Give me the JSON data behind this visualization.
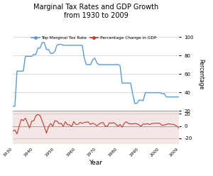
{
  "title": "Marginal Tax Rates and GDP Growth\nfrom 1930 to 2009",
  "xlabel": "Year",
  "right_ylabel": "Percentage",
  "tax_color": "#5b9bd5",
  "gdp_color": "#c0392b",
  "background_top": "#ffffff",
  "background_bottom": "#f5e6e6",
  "legend_tax": "Top Marginal Tax Rate",
  "legend_gdp": "Percentage Change in GDP",
  "tax_years": [
    1930,
    1931,
    1932,
    1933,
    1934,
    1935,
    1936,
    1937,
    1938,
    1939,
    1940,
    1941,
    1942,
    1943,
    1944,
    1945,
    1946,
    1947,
    1948,
    1949,
    1950,
    1951,
    1952,
    1953,
    1954,
    1955,
    1956,
    1957,
    1958,
    1959,
    1960,
    1961,
    1962,
    1963,
    1964,
    1965,
    1966,
    1967,
    1968,
    1969,
    1970,
    1971,
    1972,
    1973,
    1974,
    1975,
    1976,
    1977,
    1978,
    1979,
    1980,
    1981,
    1982,
    1983,
    1984,
    1985,
    1986,
    1987,
    1988,
    1989,
    1990,
    1991,
    1992,
    1993,
    1994,
    1995,
    1996,
    1997,
    1998,
    1999,
    2000,
    2001,
    2002,
    2003,
    2004,
    2005,
    2006,
    2007,
    2008,
    2009
  ],
  "tax_rates": [
    25,
    25,
    63,
    63,
    63,
    63,
    79,
    79,
    79,
    79,
    81.1,
    81.1,
    88,
    88,
    94,
    94,
    86.45,
    86.45,
    82.13,
    82.13,
    84.36,
    91,
    92,
    92,
    91,
    91,
    91,
    91,
    91,
    91,
    91,
    91,
    91,
    91,
    77,
    70,
    70,
    70,
    75.25,
    77,
    71.75,
    70,
    70,
    70,
    70,
    70,
    70,
    70,
    70,
    70,
    70,
    69.125,
    50,
    50,
    50,
    50,
    50,
    38.5,
    28,
    28,
    31.5,
    31.5,
    31,
    39.6,
    39.6,
    39.6,
    39.6,
    39.6,
    39.6,
    39.6,
    39.6,
    38.6,
    38.6,
    35,
    35,
    35,
    35,
    35,
    35,
    35
  ],
  "gdp_years": [
    1930,
    1931,
    1932,
    1933,
    1934,
    1935,
    1936,
    1937,
    1938,
    1939,
    1940,
    1941,
    1942,
    1943,
    1944,
    1945,
    1946,
    1947,
    1948,
    1949,
    1950,
    1951,
    1952,
    1953,
    1954,
    1955,
    1956,
    1957,
    1958,
    1959,
    1960,
    1961,
    1962,
    1963,
    1964,
    1965,
    1966,
    1967,
    1968,
    1969,
    1970,
    1971,
    1972,
    1973,
    1974,
    1975,
    1976,
    1977,
    1978,
    1979,
    1980,
    1981,
    1982,
    1983,
    1984,
    1985,
    1986,
    1987,
    1988,
    1989,
    1990,
    1991,
    1992,
    1993,
    1994,
    1995,
    1996,
    1997,
    1998,
    1999,
    2000,
    2001,
    2002,
    2003,
    2004,
    2005,
    2006,
    2007,
    2008,
    2009
  ],
  "gdp_values": [
    -8.5,
    -6.4,
    -12.9,
    -1.2,
    10.8,
    8.9,
    12.9,
    5.1,
    -3.3,
    8.0,
    8.8,
    17.1,
    18.9,
    17.0,
    8.0,
    -1.0,
    -11.6,
    -1.1,
    4.1,
    -0.6,
    8.7,
    8.1,
    3.8,
    4.6,
    -0.6,
    7.1,
    2.1,
    2.1,
    -1.0,
    7.2,
    2.6,
    2.6,
    6.1,
    4.4,
    5.8,
    6.4,
    6.5,
    2.5,
    4.8,
    3.1,
    0.2,
    3.3,
    5.3,
    5.6,
    -0.5,
    -0.2,
    5.4,
    4.6,
    5.5,
    3.2,
    -0.2,
    2.5,
    -1.9,
    4.5,
    7.2,
    4.1,
    3.5,
    3.5,
    4.2,
    3.7,
    1.9,
    -0.2,
    3.4,
    2.9,
    4.0,
    2.5,
    3.7,
    4.5,
    4.4,
    4.8,
    4.1,
    1.1,
    1.8,
    2.5,
    3.6,
    3.1,
    2.7,
    1.9,
    -0.3,
    -3.5
  ],
  "tax_ylim": [
    20,
    100
  ],
  "tax_yticks": [
    20,
    40,
    60,
    80,
    100
  ],
  "gdp_ylim": [
    -30,
    25
  ],
  "gdp_yticks": [
    -20,
    0,
    20
  ],
  "xticks": [
    1930,
    1940,
    1950,
    1960,
    1970,
    1980,
    1990,
    2000,
    2009
  ]
}
